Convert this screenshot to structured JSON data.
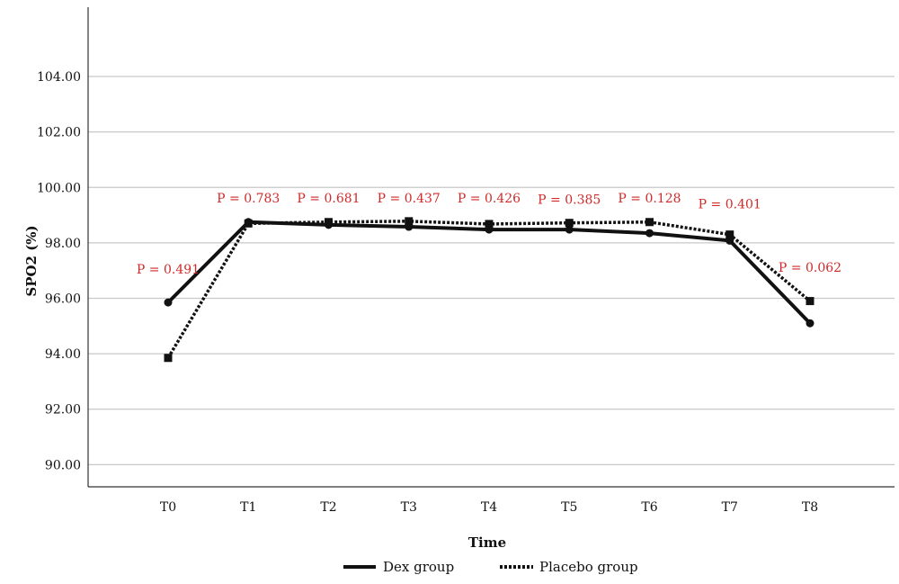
{
  "chart_data": {
    "type": "line",
    "xlabel": "Time",
    "ylabel": "SPO2 (%)",
    "categories": [
      "T0",
      "T1",
      "T2",
      "T3",
      "T4",
      "T5",
      "T6",
      "T7",
      "T8"
    ],
    "ylim": [
      89.2,
      106.5
    ],
    "yticks": [
      90,
      92,
      94,
      96,
      98,
      100,
      102,
      104
    ],
    "ytick_labels": [
      "90.00",
      "92.00",
      "94.00",
      "96.00",
      "98.00",
      "100.00",
      "102.00",
      "104.00"
    ],
    "grid": "horizontal",
    "legend_position": "bottom",
    "series": [
      {
        "name": "Dex group",
        "style": "solid",
        "marker": "circle",
        "color": "#111111",
        "values": [
          95.85,
          98.75,
          98.65,
          98.58,
          98.48,
          98.48,
          98.35,
          98.08,
          95.1
        ]
      },
      {
        "name": "Placebo group",
        "style": "dotted",
        "marker": "square",
        "color": "#111111",
        "values": [
          93.85,
          98.7,
          98.75,
          98.78,
          98.68,
          98.72,
          98.75,
          98.3,
          95.9
        ]
      }
    ],
    "annotations": [
      "P = 0.491",
      "P = 0.783",
      "P = 0.681",
      "P = 0.437",
      "P = 0.426",
      "P = 0.385",
      "P = 0.128",
      "P = 0.401",
      "P = 0.062"
    ],
    "annotation_y": [
      96.9,
      99.45,
      99.45,
      99.45,
      99.45,
      99.4,
      99.45,
      99.25,
      96.95
    ],
    "annotation_color": "#d02a2a",
    "gridline_color": "#c8c8c8"
  }
}
